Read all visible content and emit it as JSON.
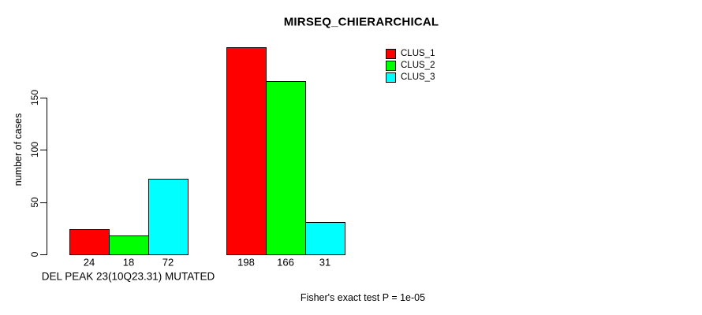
{
  "chart_data": {
    "type": "bar",
    "title": "MIRSEQ_CHIERARCHICAL",
    "ylabel": "number of cases",
    "yticks": [
      0,
      50,
      100,
      150
    ],
    "ylim": [
      0,
      150
    ],
    "grid": false,
    "legend_position": "top-right",
    "legend": [
      {
        "label": "CLUS_1",
        "color": "#ff0000"
      },
      {
        "label": "CLUS_2",
        "color": "#00ff00"
      },
      {
        "label": "CLUS_3",
        "color": "#00ffff"
      }
    ],
    "groups": [
      {
        "label": "DEL PEAK 23(10Q23.31) MUTATED",
        "values": [
          24,
          18,
          72
        ]
      },
      {
        "label": "",
        "values": [
          198,
          166,
          31
        ]
      }
    ],
    "bar_border_color": "#000000",
    "axis_color": "#000000",
    "footnote": "Fisher's exact test P = 1e-05"
  }
}
